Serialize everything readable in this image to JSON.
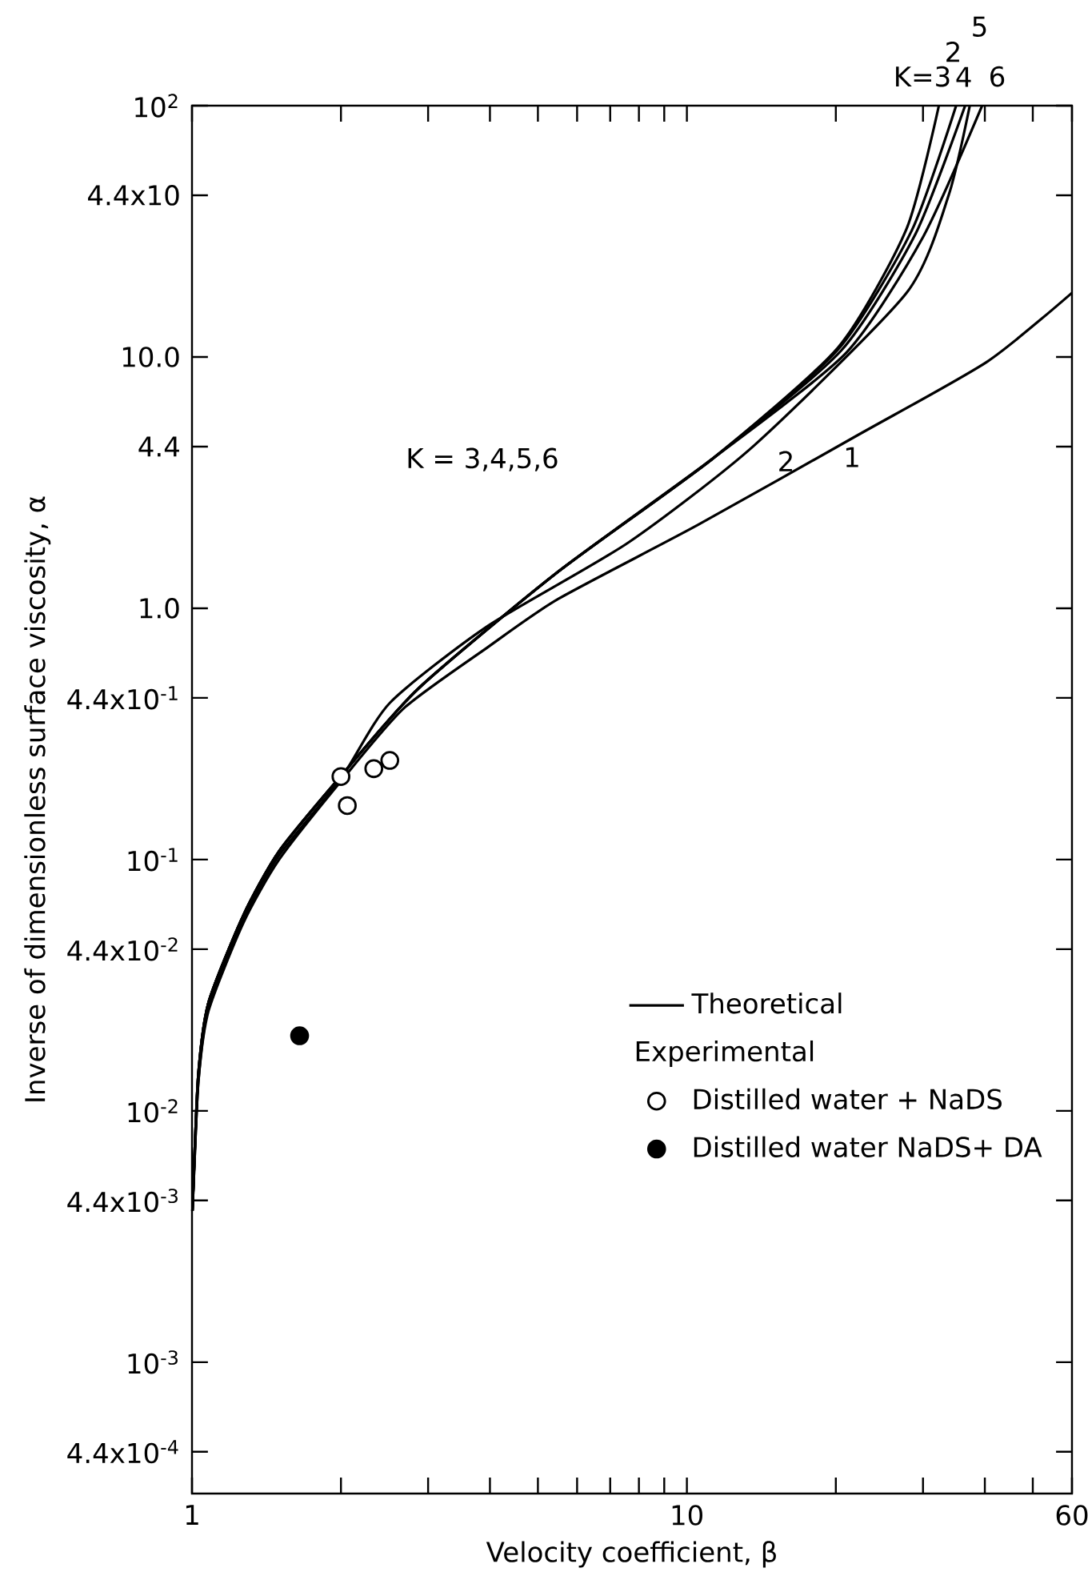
{
  "chart_data": {
    "type": "line",
    "log": "xy",
    "xlabel": "Velocity coefficient, β",
    "ylabel": "Inverse of dimensionless surface viscosity, α",
    "legend_title": "Experimental",
    "legend": "right",
    "grid": false,
    "line_style": "solid",
    "marker": "none",
    "xlim": [
      1,
      60
    ],
    "ylim": [
      0.0003,
      100
    ],
    "xticks": [
      1,
      {
        "value": 2,
        "label": null
      },
      {
        "value": 3,
        "label": null
      },
      {
        "value": 4,
        "label": null
      },
      {
        "value": 5,
        "label": null
      },
      {
        "value": 6,
        "label": null
      },
      {
        "value": 7,
        "label": null
      },
      {
        "value": 8,
        "label": null
      },
      {
        "value": 9,
        "label": null
      },
      10,
      {
        "value": 20,
        "label": null
      },
      {
        "value": 30,
        "label": null
      },
      {
        "value": 40,
        "label": null
      },
      {
        "value": 50,
        "label": null
      },
      60
    ],
    "yticks": [
      {
        "value": 100,
        "label": "10$^{2}$"
      },
      {
        "value": 44,
        "label": "4.4x10"
      },
      {
        "value": 10,
        "label": "10.0"
      },
      {
        "value": 4.4,
        "label": "4.4"
      },
      {
        "value": 1,
        "label": "1.0"
      },
      {
        "value": 0.44,
        "label": "4.4x10$^{-1}$"
      },
      {
        "value": 0.1,
        "label": "10$^{-1}$"
      },
      {
        "value": 0.044,
        "label": "4.4x10$^{-2}$"
      },
      {
        "value": 0.01,
        "label": "10$^{-2}$"
      },
      {
        "value": 0.0044,
        "label": "4.4x10$^{-3}$"
      },
      {
        "value": 0.001,
        "label": "10$^{-3}$"
      },
      {
        "value": 0.00044,
        "label": "4.4x10$^{-4}$"
      }
    ],
    "annotations": [
      "K = 3,4,5,6",
      "2",
      "1",
      "K=3",
      "4",
      "6",
      "2",
      "5"
    ],
    "series": [
      {
        "name": "Theoretical",
        "color": "#000000",
        "x": [
          1.002,
          1.007,
          1.03,
          1.08,
          1.27,
          1.5,
          2.0,
          2.68,
          3.96,
          5.5,
          10.5,
          22.2,
          40.5,
          60
        ],
        "values": [
          0.004,
          0.005,
          0.013,
          0.025,
          0.056,
          0.1,
          0.205,
          0.4,
          0.7,
          1.09,
          2.14,
          4.9,
          9.6,
          18
        ]
      },
      {
        "color": "#000000",
        "x": [
          1.002,
          1.007,
          1.03,
          1.08,
          1.27,
          1.5,
          2.0,
          2.51,
          3.96,
          7.6,
          13.7,
          27.8,
          33.8,
          37.3
        ],
        "values": [
          0.004,
          0.005,
          0.013,
          0.026,
          0.058,
          0.104,
          0.21,
          0.42,
          0.85,
          1.82,
          4.46,
          18,
          44,
          100
        ]
      },
      {
        "color": "#000000",
        "x": [
          1.002,
          1.007,
          1.03,
          1.08,
          1.27,
          1.5,
          2.0,
          2.87,
          5.5,
          11.2,
          20.2,
          27.8,
          32.3
        ],
        "values": [
          0.004,
          0.0052,
          0.014,
          0.027,
          0.06,
          0.108,
          0.215,
          0.48,
          1.4,
          3.9,
          10.9,
          32.4,
          100
        ]
      },
      {
        "color": "#000000",
        "x": [
          1.002,
          1.007,
          1.03,
          1.08,
          1.27,
          1.5,
          2.0,
          2.87,
          5.5,
          11.2,
          20.2,
          28.5,
          35
        ],
        "values": [
          0.004,
          0.0052,
          0.014,
          0.027,
          0.06,
          0.108,
          0.215,
          0.48,
          1.4,
          3.9,
          10.7,
          32,
          100
        ]
      },
      {
        "color": "#000000",
        "x": [
          1.002,
          1.007,
          1.03,
          1.08,
          1.27,
          1.5,
          2.0,
          2.87,
          5.5,
          11.2,
          20.5,
          29,
          36.5
        ],
        "values": [
          0.004,
          0.0052,
          0.014,
          0.027,
          0.06,
          0.108,
          0.215,
          0.48,
          1.4,
          3.9,
          10.6,
          31,
          100
        ]
      },
      {
        "color": "#000000",
        "x": [
          1.002,
          1.007,
          1.03,
          1.08,
          1.27,
          1.5,
          2.0,
          2.87,
          5.5,
          11.2,
          21,
          30,
          39.5
        ],
        "values": [
          0.004,
          0.0052,
          0.014,
          0.027,
          0.06,
          0.108,
          0.215,
          0.48,
          1.4,
          3.9,
          10.4,
          30,
          100
        ]
      },
      {
        "name": "Distilled  water + NaDS",
        "type": "scatter",
        "marker": "circle",
        "color": "#ffffff",
        "x": [
          2.0,
          2.33,
          2.51,
          2.06
        ],
        "values": [
          0.214,
          0.23,
          0.248,
          0.164
        ]
      },
      {
        "name": "Distilled  water  NaDS+ DA",
        "type": "scatter",
        "marker": "circle",
        "color": "#000000",
        "x": [
          1.65
        ],
        "values": [
          0.0199
        ]
      }
    ]
  }
}
